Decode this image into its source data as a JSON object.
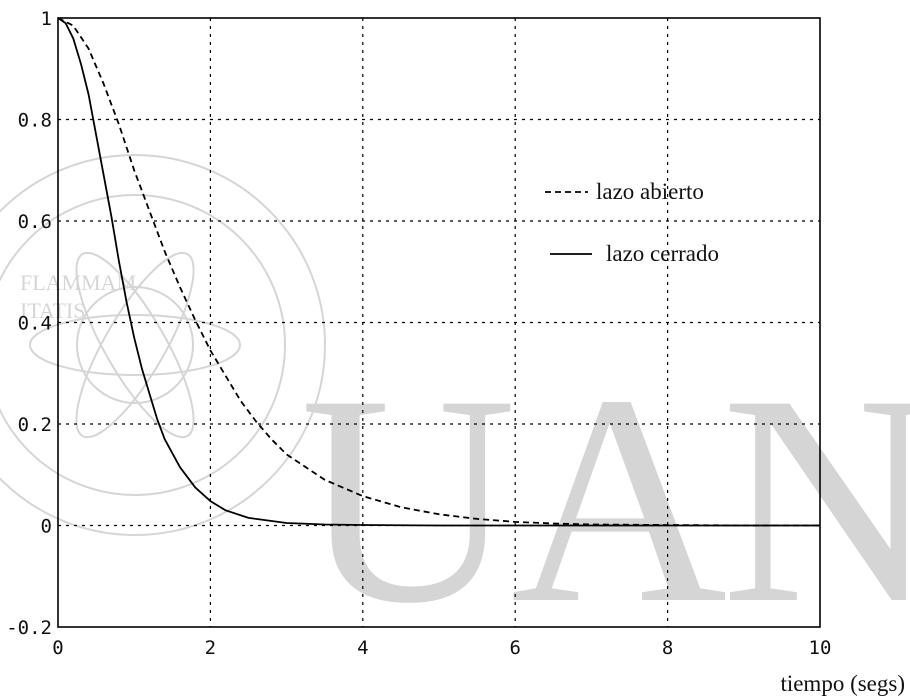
{
  "chart_data": {
    "type": "line",
    "title": "",
    "xlabel": "tiempo (segs)",
    "ylabel": "",
    "xlim": [
      0,
      10
    ],
    "ylim": [
      -0.2,
      1
    ],
    "grid": true,
    "legend_position": "right",
    "x_ticks": [
      "0",
      "2",
      "4",
      "6",
      "8",
      "10"
    ],
    "y_ticks": [
      "1",
      "0.8",
      "0.6",
      "0.4",
      "0.2",
      "0",
      "-0.2"
    ],
    "series": [
      {
        "name": "lazo abierto",
        "style": "dashed",
        "x": [
          0,
          0.2,
          0.4,
          0.6,
          0.8,
          1.0,
          1.2,
          1.4,
          1.6,
          1.8,
          2.0,
          2.2,
          2.4,
          2.6,
          2.8,
          3.0,
          3.5,
          4.0,
          4.5,
          5.0,
          5.5,
          6.0,
          6.5,
          7.0,
          8.0,
          9.0,
          10.0
        ],
        "y": [
          1.0,
          0.985,
          0.94,
          0.87,
          0.79,
          0.7,
          0.62,
          0.54,
          0.47,
          0.405,
          0.345,
          0.295,
          0.245,
          0.205,
          0.17,
          0.14,
          0.09,
          0.058,
          0.036,
          0.022,
          0.013,
          0.007,
          0.004,
          0.002,
          0.001,
          0.0,
          0.0
        ]
      },
      {
        "name": "lazo cerrado",
        "style": "solid",
        "x": [
          0,
          0.1,
          0.2,
          0.3,
          0.4,
          0.5,
          0.6,
          0.7,
          0.8,
          0.9,
          1.0,
          1.1,
          1.2,
          1.3,
          1.4,
          1.6,
          1.8,
          2.0,
          2.2,
          2.5,
          3.0,
          3.5,
          4.0,
          5.0,
          6.0,
          8.0,
          10.0
        ],
        "y": [
          1.0,
          0.99,
          0.96,
          0.91,
          0.85,
          0.77,
          0.69,
          0.61,
          0.52,
          0.44,
          0.37,
          0.31,
          0.26,
          0.21,
          0.17,
          0.115,
          0.075,
          0.048,
          0.03,
          0.015,
          0.005,
          0.002,
          0.001,
          0.0,
          0.0,
          0.0,
          0.0
        ]
      }
    ]
  },
  "watermark": {
    "text": "UANL",
    "seal_text": [
      "FLAMMAM",
      "ITATIS"
    ]
  }
}
